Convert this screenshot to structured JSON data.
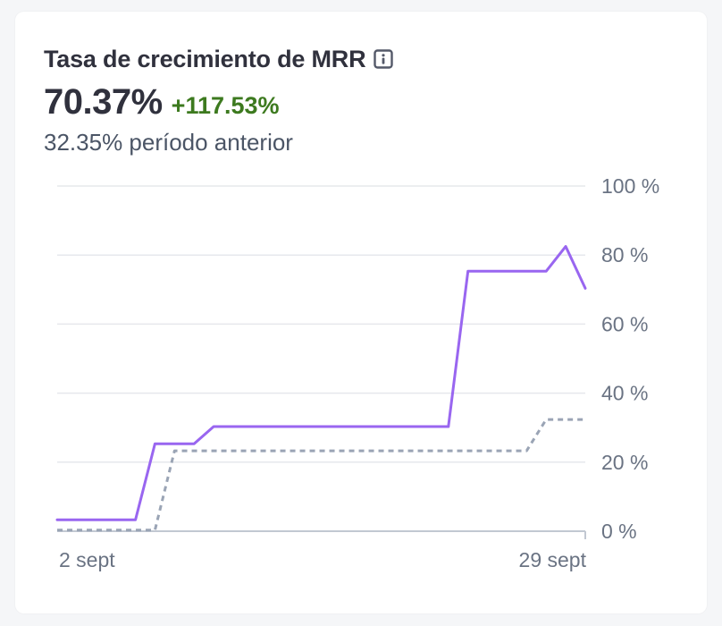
{
  "card": {
    "title": "Tasa de crecimiento de MRR",
    "value": "70.37%",
    "delta": "+117.53%",
    "previous": "32.35% período anterior",
    "delta_color": "#3d7a1f"
  },
  "colors": {
    "current": "#9966f0",
    "previous": "#9aa4b5",
    "grid": "#e6e8ec",
    "baseline": "#c2c8d2"
  },
  "chart_data": {
    "type": "line",
    "title": "",
    "xlabel": "",
    "ylabel": "",
    "x_tick_labels": [
      "2 sept",
      "29 sept"
    ],
    "y_tick_labels": [
      "100 %",
      "80 %",
      "60 %",
      "40 %",
      "20 %",
      "0 %"
    ],
    "y_ticks": [
      100,
      80,
      60,
      40,
      20,
      0
    ],
    "ylim": [
      0,
      100
    ],
    "x_range": [
      2,
      29
    ],
    "grid": true,
    "series": [
      {
        "style": "solid",
        "x": [
          2,
          6,
          7,
          9,
          10,
          22,
          23,
          27,
          28,
          29
        ],
        "y": [
          3.3,
          3.3,
          25.3,
          25.3,
          30.3,
          30.3,
          75.3,
          75.3,
          82.5,
          70.37
        ]
      },
      {
        "style": "dashed",
        "x": [
          2,
          7,
          8,
          26,
          27,
          29
        ],
        "y": [
          0.3,
          0.3,
          23.3,
          23.3,
          32.35,
          32.35
        ]
      }
    ]
  }
}
